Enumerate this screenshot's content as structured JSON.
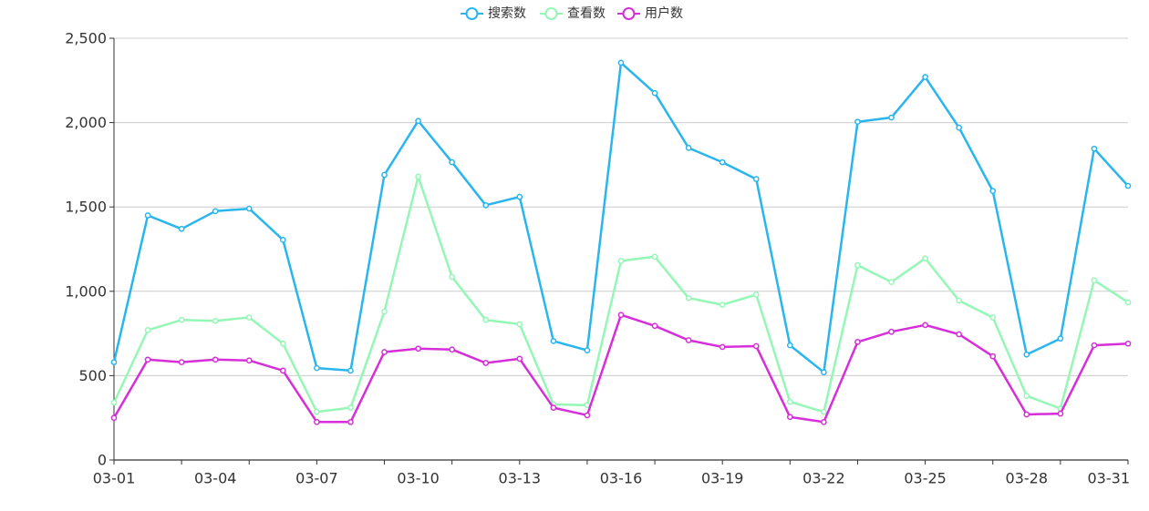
{
  "chart_data": {
    "type": "line",
    "categories": [
      "03-01",
      "03-02",
      "03-03",
      "03-04",
      "03-05",
      "03-06",
      "03-07",
      "03-08",
      "03-09",
      "03-10",
      "03-11",
      "03-12",
      "03-13",
      "03-14",
      "03-15",
      "03-16",
      "03-17",
      "03-18",
      "03-19",
      "03-20",
      "03-21",
      "03-22",
      "03-23",
      "03-24",
      "03-25",
      "03-26",
      "03-27",
      "03-28",
      "03-29",
      "03-30",
      "03-31"
    ],
    "x_tick_labels": [
      "03-01",
      "03-04",
      "03-07",
      "03-10",
      "03-13",
      "03-16",
      "03-19",
      "03-22",
      "03-25",
      "03-28",
      "03-31"
    ],
    "y_ticks": [
      0,
      500,
      1000,
      1500,
      2000,
      2500
    ],
    "y_tick_labels": [
      "0",
      "500",
      "1,000",
      "1,500",
      "2,000",
      "2,500"
    ],
    "ylim": [
      0,
      2500
    ],
    "grid": "horizontal",
    "legend_position": "top-center",
    "series": [
      {
        "name": "搜索数",
        "color": "#29B5EE",
        "values": [
          580,
          1450,
          1370,
          1475,
          1490,
          1305,
          545,
          530,
          1690,
          2010,
          1765,
          1510,
          1560,
          705,
          650,
          2355,
          2175,
          1850,
          1765,
          1665,
          680,
          520,
          2005,
          2030,
          2270,
          1970,
          1595,
          625,
          720,
          1845,
          1625
        ]
      },
      {
        "name": "查看数",
        "color": "#95F7B5",
        "values": [
          340,
          770,
          830,
          825,
          845,
          690,
          285,
          310,
          880,
          1680,
          1085,
          830,
          805,
          330,
          325,
          1180,
          1205,
          960,
          920,
          980,
          345,
          285,
          1155,
          1055,
          1195,
          945,
          845,
          380,
          305,
          1065,
          935
        ]
      },
      {
        "name": "用户数",
        "color": "#D62ED9",
        "values": [
          250,
          595,
          580,
          595,
          590,
          530,
          225,
          225,
          640,
          660,
          655,
          575,
          600,
          310,
          265,
          860,
          795,
          710,
          670,
          675,
          255,
          225,
          700,
          760,
          800,
          745,
          615,
          270,
          275,
          680,
          690
        ]
      }
    ]
  }
}
